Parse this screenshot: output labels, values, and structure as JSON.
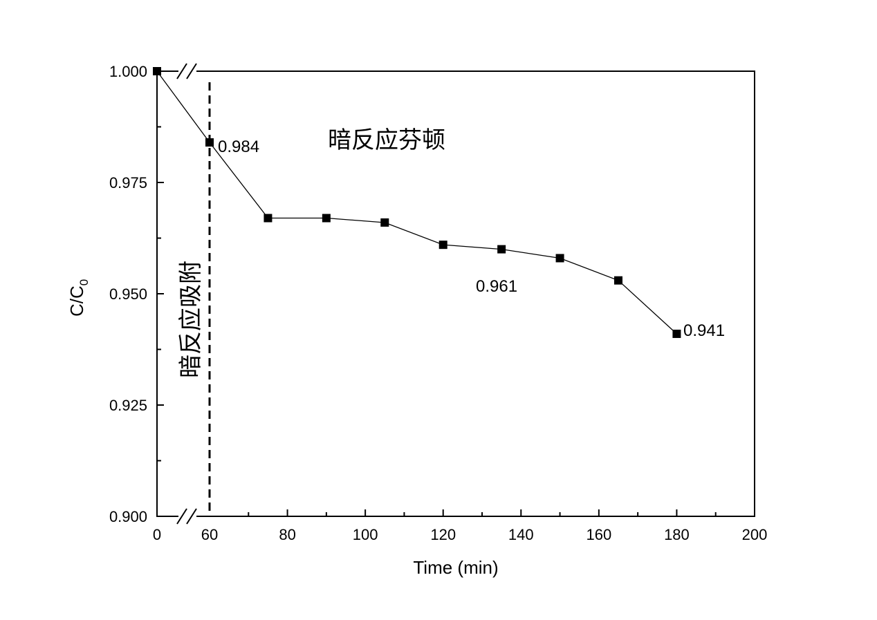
{
  "chart_data": {
    "type": "line",
    "xlabel": "Time (min)",
    "ylabel_main": "C/C",
    "ylabel_sub": "0",
    "xlim": [
      0,
      200
    ],
    "ylim": [
      0.9,
      1.0
    ],
    "x_ticks": [
      "0",
      "60",
      "80",
      "100",
      "120",
      "140",
      "160",
      "180",
      "200"
    ],
    "y_ticks": [
      "0.900",
      "0.925",
      "0.950",
      "0.975",
      "1.000"
    ],
    "axis_break": "0-60 on x axis",
    "series": [
      {
        "x": [
          0,
          60,
          75,
          90,
          105,
          120,
          135,
          150,
          165,
          180
        ],
        "values": [
          1.0,
          0.984,
          0.967,
          0.967,
          0.966,
          0.961,
          0.96,
          0.958,
          0.953,
          0.941
        ],
        "marker": "square",
        "color": "#000000"
      }
    ],
    "data_labels": [
      "0.984",
      "0.961",
      "0.941"
    ],
    "annotations": {
      "dark_adsorption": "暗反应吸附",
      "dark_reaction_fenton": "暗反应芬顿"
    },
    "divider_x": 60,
    "grid": false,
    "legend": "none"
  }
}
